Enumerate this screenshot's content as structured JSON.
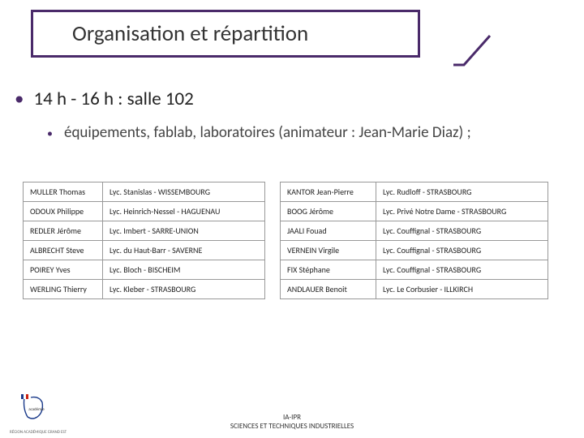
{
  "colors": {
    "accent": "#4a2a6a",
    "text": "#333333",
    "border": "#999999"
  },
  "title": "Organisation et répartition",
  "bullet_main": "14 h - 16 h : salle 102",
  "bullet_sub": "équipements, fablab, laboratoires (animateur : Jean-Marie Diaz) ;",
  "table_left": {
    "rows": [
      [
        "MULLER Thomas",
        "Lyc. Stanislas - WISSEMBOURG"
      ],
      [
        "ODOUX Philippe",
        "Lyc. Heinrich-Nessel - HAGUENAU"
      ],
      [
        "REDLER Jérôme",
        "Lyc. Imbert - SARRE-UNION"
      ],
      [
        "ALBRECHT Steve",
        "Lyc. du Haut-Barr - SAVERNE"
      ],
      [
        "POIREY Yves",
        "Lyc. Bloch - BISCHEIM"
      ],
      [
        "WERLING Thierry",
        "Lyc. Kleber - STRASBOURG"
      ]
    ]
  },
  "table_right": {
    "rows": [
      [
        "KANTOR Jean-Pierre",
        "Lyc. Rudloff - STRASBOURG"
      ],
      [
        "BOOG Jérôme",
        "Lyc. Privé Notre Dame - STRASBOURG"
      ],
      [
        "JAALI Fouad",
        "Lyc. Couffignal - STRASBOURG"
      ],
      [
        "VERNEIN Virgile",
        "Lyc. Couffignal - STRASBOURG"
      ],
      [
        "FIX Stéphane",
        "Lyc. Couffignal - STRASBOURG"
      ],
      [
        "ANDLAUER Benoit",
        "Lyc. Le Corbusier - ILLKIRCH"
      ]
    ]
  },
  "footer": {
    "line1": "IA-IPR",
    "line2": "SCIENCES ET TECHNIQUES INDUSTRIELLES"
  },
  "logo_label": "académie Strasbourg",
  "region_label": "RÉGION ACADÉMIQUE GRAND EST"
}
